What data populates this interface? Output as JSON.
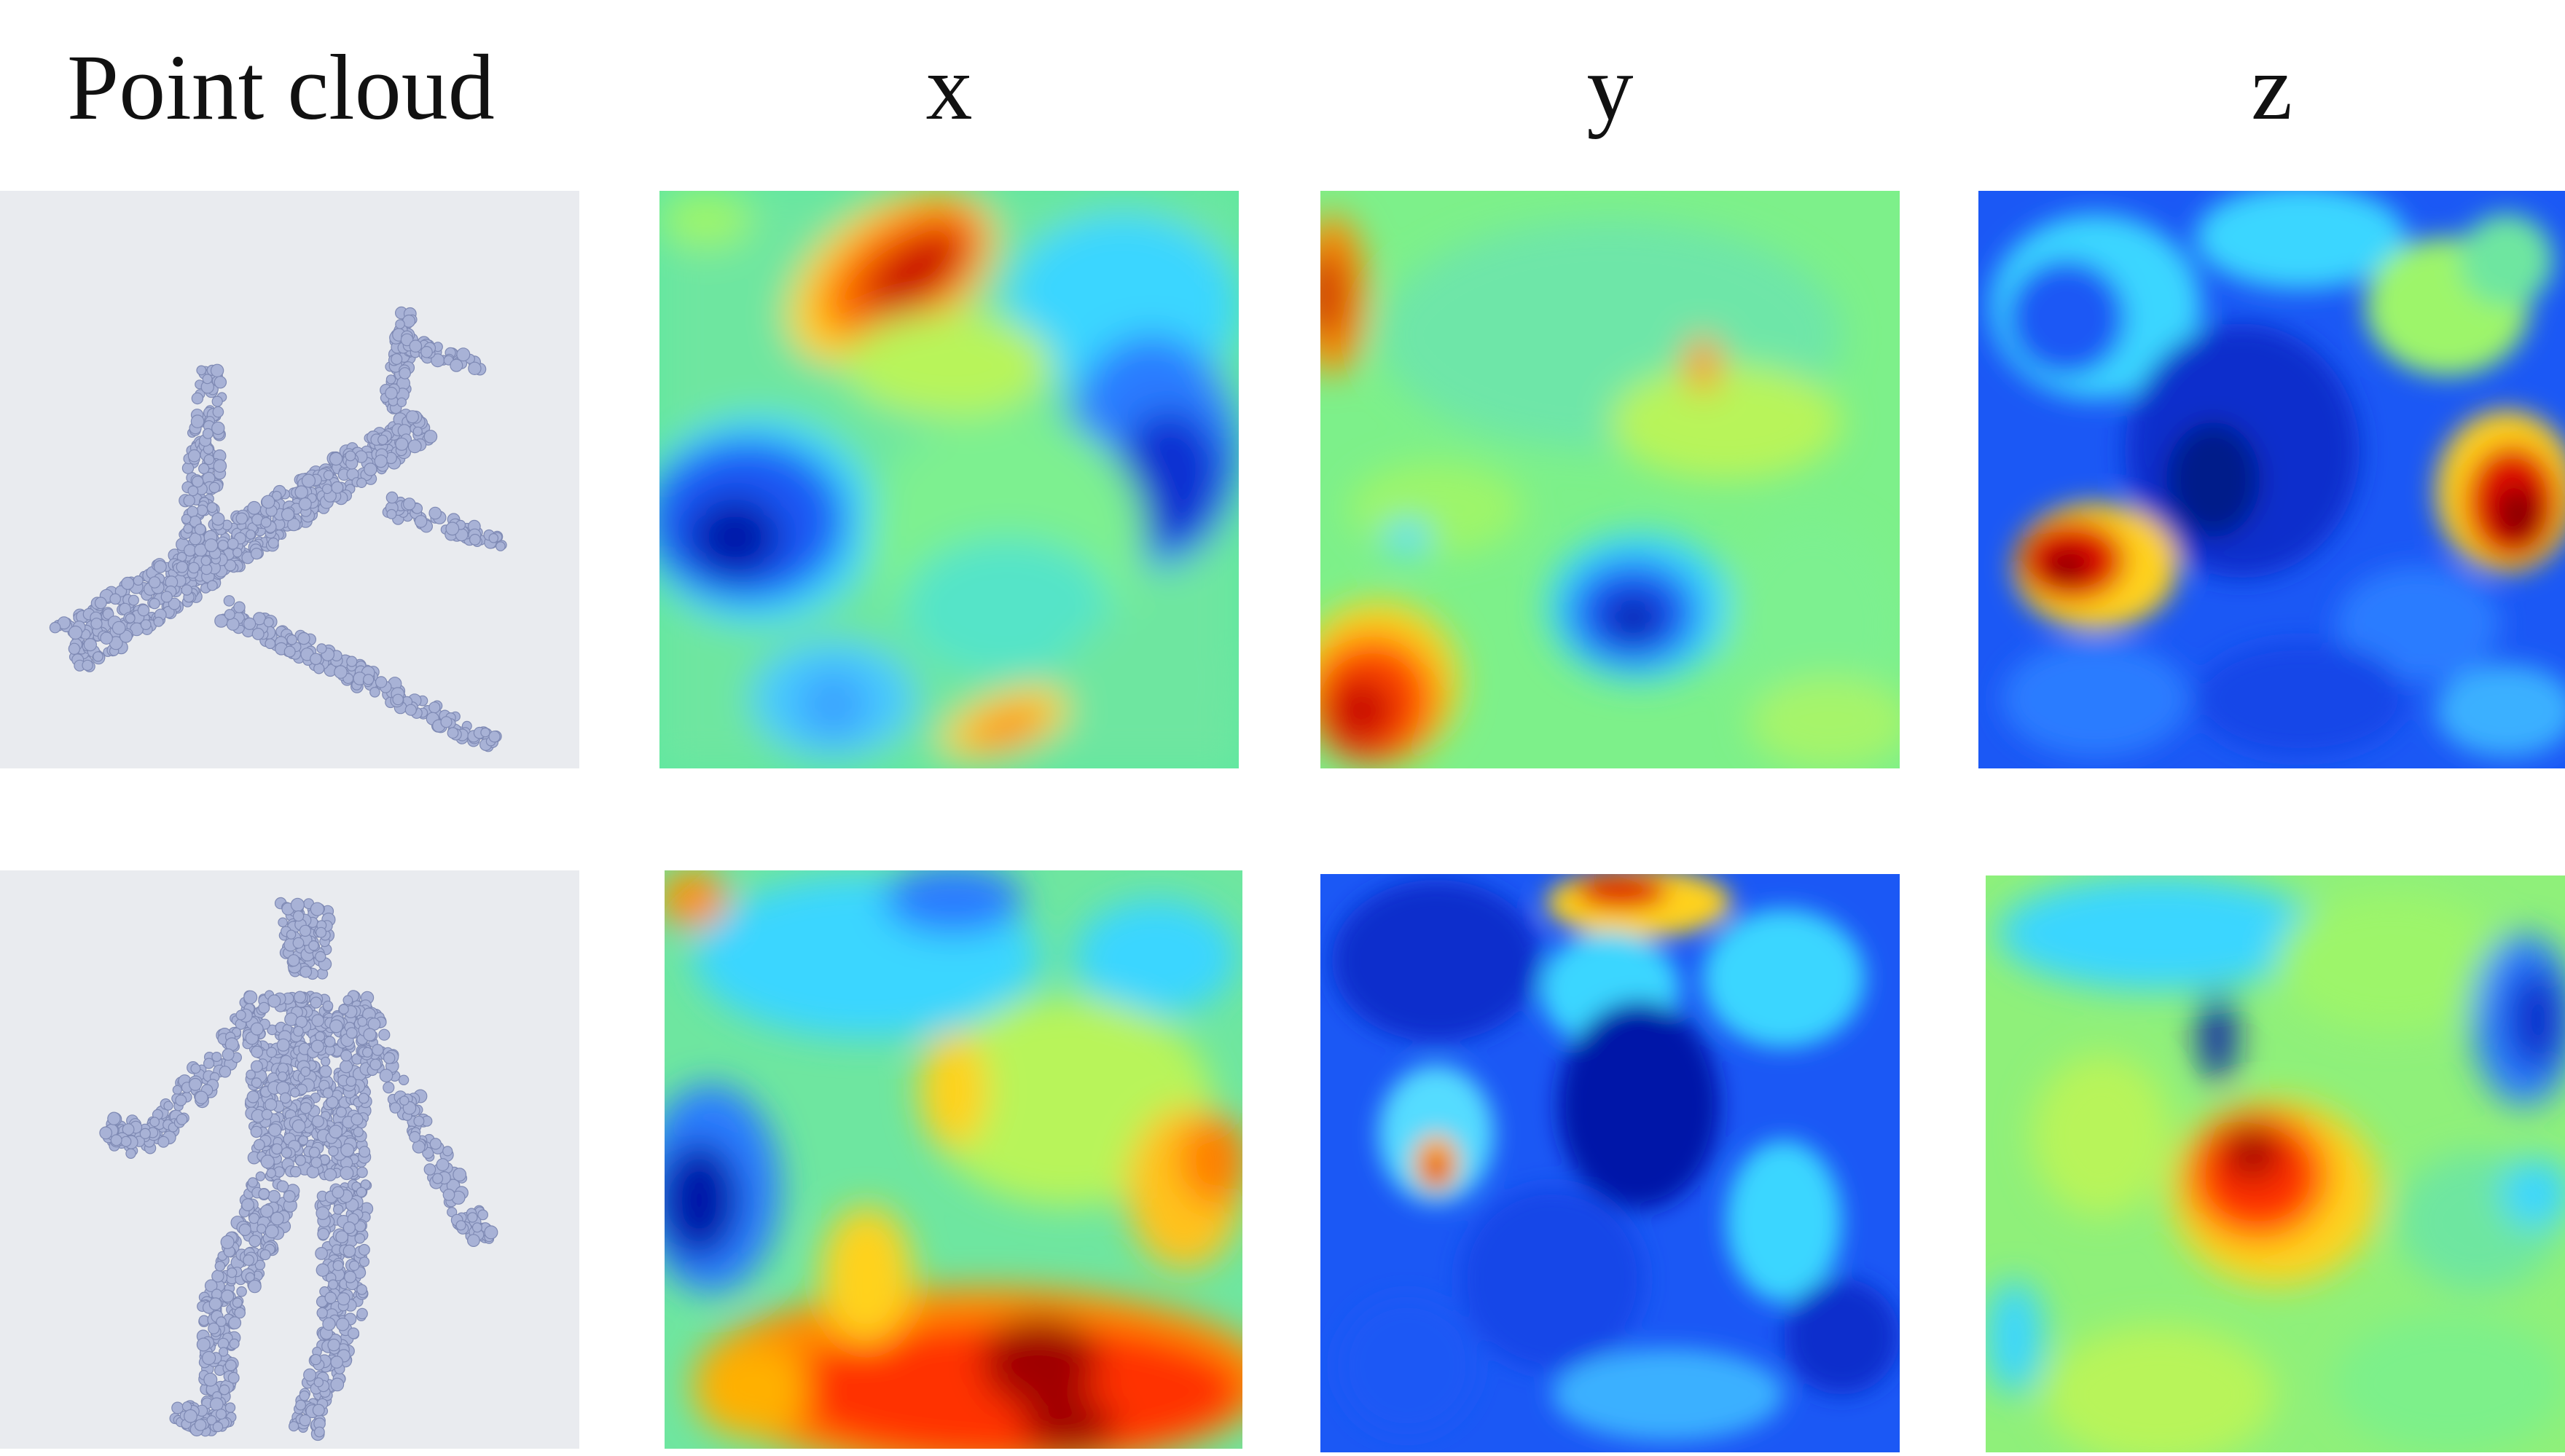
{
  "headers": {
    "point_cloud": "Point cloud",
    "x": "x",
    "y": "y",
    "z": "z"
  },
  "rows": [
    {
      "object": "airplane"
    },
    {
      "object": "human"
    }
  ],
  "colors": {
    "background": "#ffffff",
    "point_panel_bg": "#e9ebef",
    "point_color": "#a8b2d6",
    "point_edge": "#7f8ab4",
    "colormap": "jet"
  }
}
